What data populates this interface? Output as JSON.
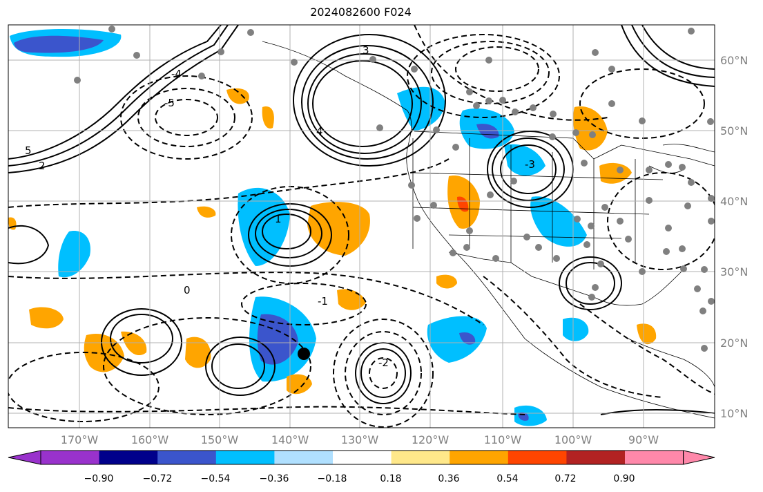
{
  "title": "2024082600 F024",
  "map": {
    "lon_range": [
      -180,
      -79
    ],
    "lat_range": [
      8,
      65
    ],
    "grid": true,
    "lon_ticks": [
      "170°W",
      "160°W",
      "150°W",
      "140°W",
      "130°W",
      "120°W",
      "110°W",
      "100°W",
      "90°W"
    ],
    "lat_ticks": [
      "60°N",
      "50°N",
      "40°N",
      "30°N",
      "20°N",
      "10°N"
    ],
    "contour_labels": [
      "5",
      "4",
      "3",
      "2",
      "1",
      "0",
      "-1",
      "-2",
      "-3",
      "-4",
      "-5"
    ],
    "colors": {
      "neg_strong": "#3b55cc",
      "neg_mid": "#00bfff",
      "pos_mid": "#ffa500",
      "pos_strong": "#ff4500",
      "station": "#808080",
      "marker": "#000000"
    }
  },
  "colorbar": {
    "labels": [
      "−0.90",
      "−0.72",
      "−0.54",
      "−0.36",
      "−0.18",
      "0.18",
      "0.36",
      "0.54",
      "0.72",
      "0.90"
    ],
    "colors": [
      "#9932cc",
      "#00008b",
      "#3b55cc",
      "#00bfff",
      "#b0e0ff",
      "#ffffff",
      "#ffe88a",
      "#ffa500",
      "#ff4500",
      "#b22222",
      "#ff88aa"
    ]
  }
}
